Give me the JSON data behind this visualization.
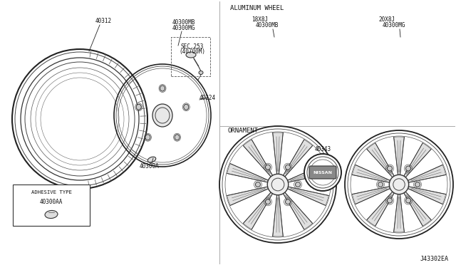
{
  "bg_color": "#ffffff",
  "line_color": "#222222",
  "title_aluminum": "ALUMINUM WHEEL",
  "title_ornament": "ORNAMENT",
  "label_40312": "40312",
  "label_40300MB_top": "40300MB",
  "label_40300MG_top": "40300MG",
  "label_40300DMB": "40300MB",
  "label_40300DMG": "40300MG",
  "label_40224": "40224",
  "label_SEC253": "SEC.253",
  "label_40700M": "(40700M)",
  "label_40300A": "40300A",
  "label_40300AA": "40300AA",
  "label_adhesive": "ADHESIVE TYPE",
  "label_18x8j": "18X8J",
  "label_20x8j": "20X8J",
  "label_40343": "40343",
  "label_nissan": "NISSAN",
  "label_diagram": "J43302EA",
  "text_color": "#111111",
  "font_size_label": 5.5,
  "font_size_title": 6.5,
  "font_size_diagram": 6
}
